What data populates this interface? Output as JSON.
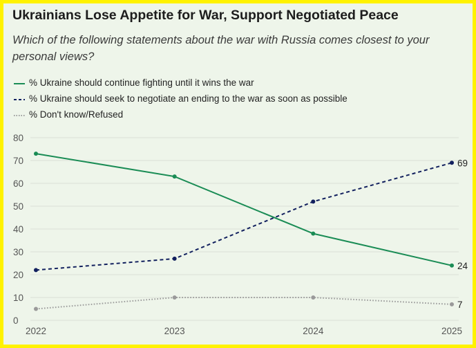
{
  "title": "Ukrainians Lose Appetite for War, Support Negotiated Peace",
  "subtitle": "Which of the following statements about the war with Russia comes closest to your personal views?",
  "colors": {
    "border": "#fff200",
    "background": "#eef5ea",
    "fight": "#1a8c55",
    "negotiate": "#12205e",
    "dont_know": "#9a9a9a",
    "grid": "#d9dfd7"
  },
  "chart_data": {
    "type": "line",
    "title": "Ukrainians Lose Appetite for War, Support Negotiated Peace",
    "subtitle": "Which of the following statements about the war with Russia comes closest to your personal views?",
    "x": [
      "2022",
      "2023",
      "2024",
      "2025"
    ],
    "ylim": [
      0,
      80
    ],
    "yticks": [
      "0",
      "10",
      "20",
      "30",
      "40",
      "50",
      "60",
      "70",
      "80"
    ],
    "grid": true,
    "legend_position": "top-left",
    "series": [
      {
        "name": "% Ukraine should continue fighting until it wins the war",
        "values": [
          73,
          63,
          38,
          24
        ],
        "end_label": "24",
        "style": "solid",
        "color_key": "fight"
      },
      {
        "name": "% Ukraine should seek to negotiate an ending to the war as soon as possible",
        "values": [
          22,
          27,
          52,
          69
        ],
        "end_label": "69",
        "style": "dashed",
        "color_key": "negotiate"
      },
      {
        "name": "% Don't know/Refused",
        "values": [
          5,
          10,
          10,
          7
        ],
        "end_label": "7",
        "style": "dotted",
        "color_key": "dont_know"
      }
    ]
  }
}
